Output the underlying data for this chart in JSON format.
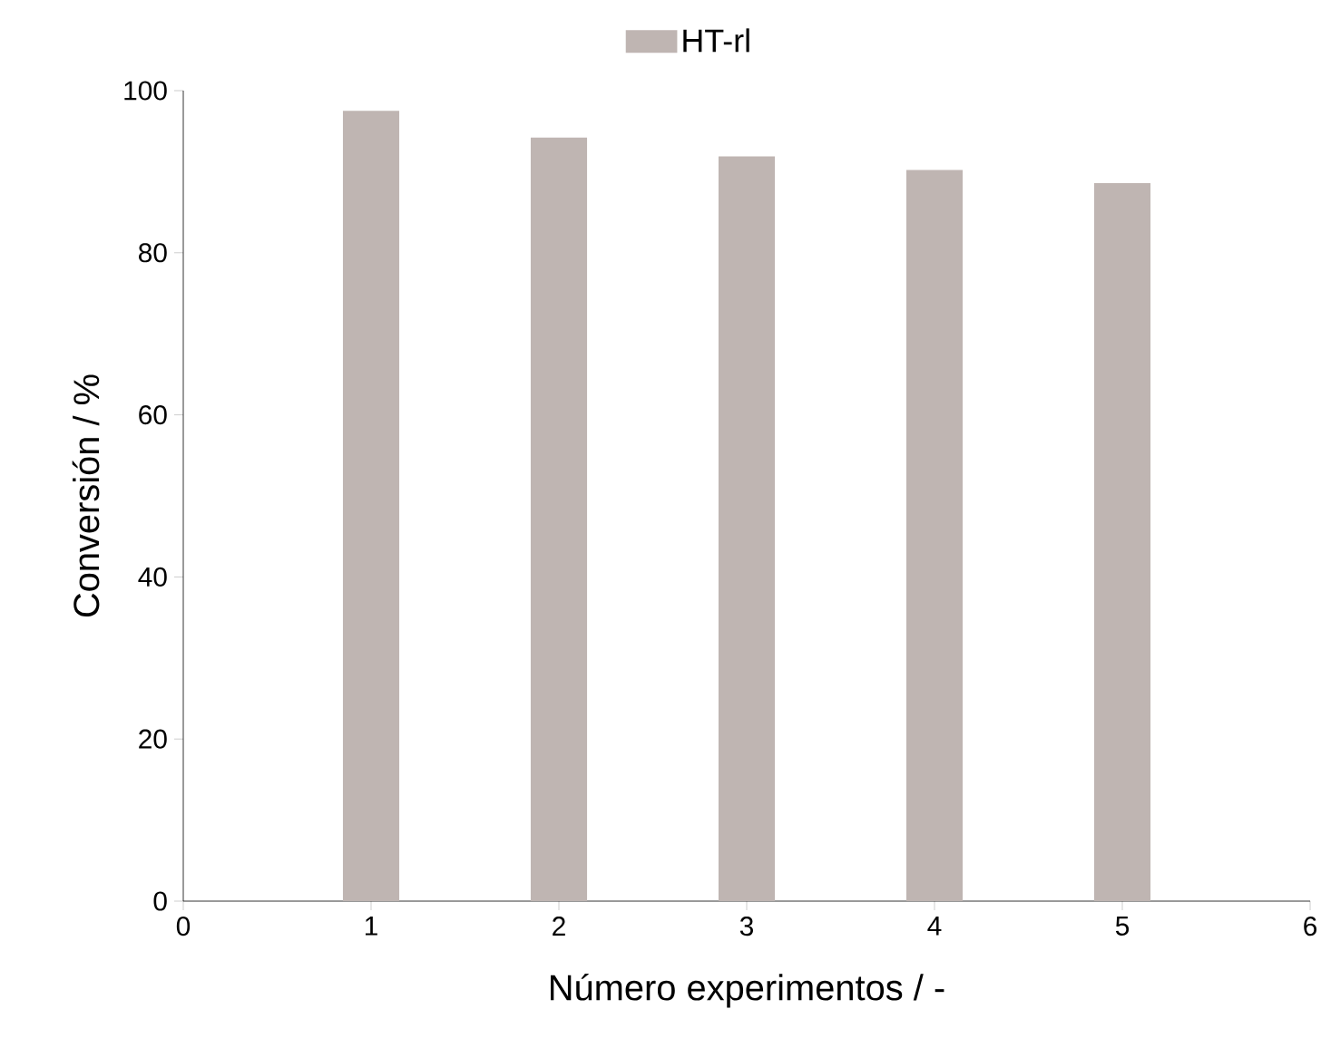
{
  "chart_data": {
    "type": "bar",
    "xlabel": "Número experimentos / -",
    "ylabel": "Conversión / %",
    "x": [
      1,
      2,
      3,
      4,
      5
    ],
    "series": [
      {
        "name": "HT-rl",
        "color": "#bfb5b2",
        "values": [
          97.5,
          94.2,
          91.9,
          90.2,
          88.6
        ]
      }
    ],
    "xlim": [
      0,
      6
    ],
    "xticks": [
      0,
      1,
      2,
      3,
      4,
      5,
      6
    ],
    "ylim": [
      0,
      100
    ],
    "yticks": [
      0,
      20,
      40,
      60,
      80,
      100
    ],
    "legend": "top",
    "grid": false
  }
}
